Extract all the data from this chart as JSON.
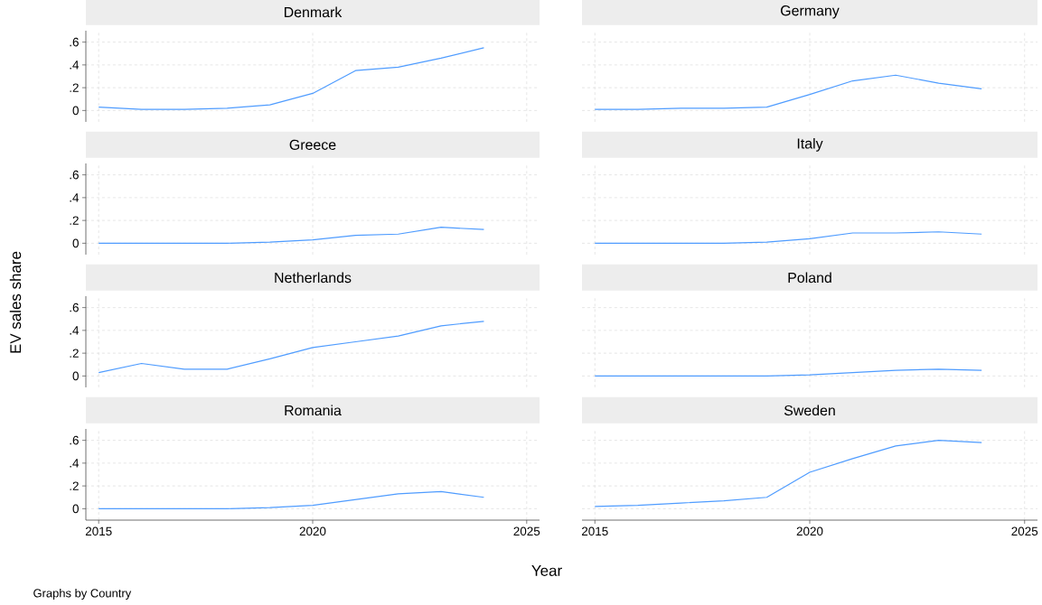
{
  "chart_data": [
    {
      "type": "line",
      "title": "Denmark",
      "x": [
        2015,
        2016,
        2017,
        2018,
        2019,
        2020,
        2021,
        2022,
        2023,
        2024
      ],
      "series": [
        {
          "color": "#4f9cff",
          "values": [
            0.03,
            0.01,
            0.01,
            0.02,
            0.05,
            0.15,
            0.35,
            0.38,
            0.46,
            0.55
          ]
        }
      ],
      "xlim": [
        2014.7,
        2025.3
      ],
      "ylim": [
        -0.1,
        0.7
      ],
      "xticks": [
        {
          "value": 2015,
          "label": null
        },
        {
          "value": 2020,
          "label": null
        },
        {
          "value": 2025,
          "label": null
        }
      ],
      "yticks": [
        0,
        {
          "value": 0.2,
          "label": ".2"
        },
        {
          "value": 0.4,
          "label": ".4"
        },
        {
          "value": 0.6,
          "label": ".6"
        }
      ],
      "grid": true,
      "tick_labels": "y"
    },
    {
      "type": "line",
      "title": "Germany",
      "x": [
        2015,
        2016,
        2017,
        2018,
        2019,
        2020,
        2021,
        2022,
        2023,
        2024
      ],
      "series": [
        {
          "color": "#4f9cff",
          "values": [
            0.01,
            0.01,
            0.02,
            0.02,
            0.03,
            0.14,
            0.26,
            0.31,
            0.24,
            0.19
          ]
        }
      ],
      "xlim": [
        2014.7,
        2025.3
      ],
      "ylim": [
        -0.1,
        0.7
      ],
      "xticks": [
        {
          "value": 2015,
          "label": null
        },
        {
          "value": 2020,
          "label": null
        },
        {
          "value": 2025,
          "label": null
        }
      ],
      "yticks": [
        {
          "value": 0,
          "label": null
        },
        {
          "value": 0.2,
          "label": null
        },
        {
          "value": 0.4,
          "label": null
        },
        {
          "value": 0.6,
          "label": null
        }
      ],
      "grid": true,
      "tick_labels": false
    },
    {
      "type": "line",
      "title": "Greece",
      "x": [
        2015,
        2016,
        2017,
        2018,
        2019,
        2020,
        2021,
        2022,
        2023,
        2024
      ],
      "series": [
        {
          "color": "#4f9cff",
          "values": [
            0,
            0,
            0,
            0,
            0.01,
            0.03,
            0.07,
            0.08,
            0.14,
            0.12
          ]
        }
      ],
      "xlim": [
        2014.7,
        2025.3
      ],
      "ylim": [
        -0.1,
        0.7
      ],
      "xticks": [
        {
          "value": 2015,
          "label": null
        },
        {
          "value": 2020,
          "label": null
        },
        {
          "value": 2025,
          "label": null
        }
      ],
      "yticks": [
        0,
        {
          "value": 0.2,
          "label": ".2"
        },
        {
          "value": 0.4,
          "label": ".4"
        },
        {
          "value": 0.6,
          "label": ".6"
        }
      ],
      "grid": true,
      "tick_labels": "y"
    },
    {
      "type": "line",
      "title": "Italy",
      "x": [
        2015,
        2016,
        2017,
        2018,
        2019,
        2020,
        2021,
        2022,
        2023,
        2024
      ],
      "series": [
        {
          "color": "#4f9cff",
          "values": [
            0,
            0,
            0,
            0,
            0.01,
            0.04,
            0.09,
            0.09,
            0.1,
            0.08
          ]
        }
      ],
      "xlim": [
        2014.7,
        2025.3
      ],
      "ylim": [
        -0.1,
        0.7
      ],
      "xticks": [
        {
          "value": 2015,
          "label": null
        },
        {
          "value": 2020,
          "label": null
        },
        {
          "value": 2025,
          "label": null
        }
      ],
      "yticks": [
        {
          "value": 0,
          "label": null
        },
        {
          "value": 0.2,
          "label": null
        },
        {
          "value": 0.4,
          "label": null
        },
        {
          "value": 0.6,
          "label": null
        }
      ],
      "grid": true,
      "tick_labels": false
    },
    {
      "type": "line",
      "title": "Netherlands",
      "ylabel": "EV sales share",
      "x": [
        2015,
        2016,
        2017,
        2018,
        2019,
        2020,
        2021,
        2022,
        2023,
        2024
      ],
      "series": [
        {
          "color": "#4f9cff",
          "values": [
            0.03,
            0.11,
            0.06,
            0.06,
            0.15,
            0.25,
            0.3,
            0.35,
            0.44,
            0.48
          ]
        }
      ],
      "xlim": [
        2014.7,
        2025.3
      ],
      "ylim": [
        -0.1,
        0.7
      ],
      "xticks": [
        {
          "value": 2015,
          "label": null
        },
        {
          "value": 2020,
          "label": null
        },
        {
          "value": 2025,
          "label": null
        }
      ],
      "yticks": [
        0,
        {
          "value": 0.2,
          "label": ".2"
        },
        {
          "value": 0.4,
          "label": ".4"
        },
        {
          "value": 0.6,
          "label": ".6"
        }
      ],
      "grid": true,
      "tick_labels": "y"
    },
    {
      "type": "line",
      "title": "Poland",
      "x": [
        2015,
        2016,
        2017,
        2018,
        2019,
        2020,
        2021,
        2022,
        2023,
        2024
      ],
      "series": [
        {
          "color": "#4f9cff",
          "values": [
            0,
            0,
            0,
            0,
            0,
            0.01,
            0.03,
            0.05,
            0.06,
            0.05
          ]
        }
      ],
      "xlim": [
        2014.7,
        2025.3
      ],
      "ylim": [
        -0.1,
        0.7
      ],
      "xticks": [
        {
          "value": 2015,
          "label": null
        },
        {
          "value": 2020,
          "label": null
        },
        {
          "value": 2025,
          "label": null
        }
      ],
      "yticks": [
        {
          "value": 0,
          "label": null
        },
        {
          "value": 0.2,
          "label": null
        },
        {
          "value": 0.4,
          "label": null
        },
        {
          "value": 0.6,
          "label": null
        }
      ],
      "grid": true,
      "tick_labels": false
    },
    {
      "type": "line",
      "title": "Romania",
      "x": [
        2015,
        2016,
        2017,
        2018,
        2019,
        2020,
        2021,
        2022,
        2023,
        2024
      ],
      "series": [
        {
          "color": "#4f9cff",
          "values": [
            0,
            0,
            0,
            0,
            0.01,
            0.03,
            0.08,
            0.13,
            0.15,
            0.1
          ]
        }
      ],
      "xlim": [
        2014.7,
        2025.3
      ],
      "ylim": [
        -0.1,
        0.7
      ],
      "xticks": [
        2015,
        2020,
        2025
      ],
      "yticks": [
        0,
        {
          "value": 0.2,
          "label": ".2"
        },
        {
          "value": 0.4,
          "label": ".4"
        },
        {
          "value": 0.6,
          "label": ".6"
        }
      ],
      "grid": true
    },
    {
      "type": "line",
      "title": "Sweden",
      "xlabel": "Year",
      "annotations": [
        "Graphs by Country"
      ],
      "x": [
        2015,
        2016,
        2017,
        2018,
        2019,
        2020,
        2021,
        2022,
        2023,
        2024
      ],
      "series": [
        {
          "color": "#4f9cff",
          "values": [
            0.02,
            0.03,
            0.05,
            0.07,
            0.1,
            0.32,
            0.44,
            0.55,
            0.6,
            0.58
          ]
        }
      ],
      "xlim": [
        2014.7,
        2025.3
      ],
      "ylim": [
        -0.1,
        0.7
      ],
      "xticks": [
        2015,
        2020,
        2025
      ],
      "yticks": [
        {
          "value": 0,
          "label": null
        },
        {
          "value": 0.2,
          "label": null
        },
        {
          "value": 0.4,
          "label": null
        },
        {
          "value": 0.6,
          "label": null
        }
      ],
      "grid": true,
      "tick_labels": "x"
    }
  ]
}
